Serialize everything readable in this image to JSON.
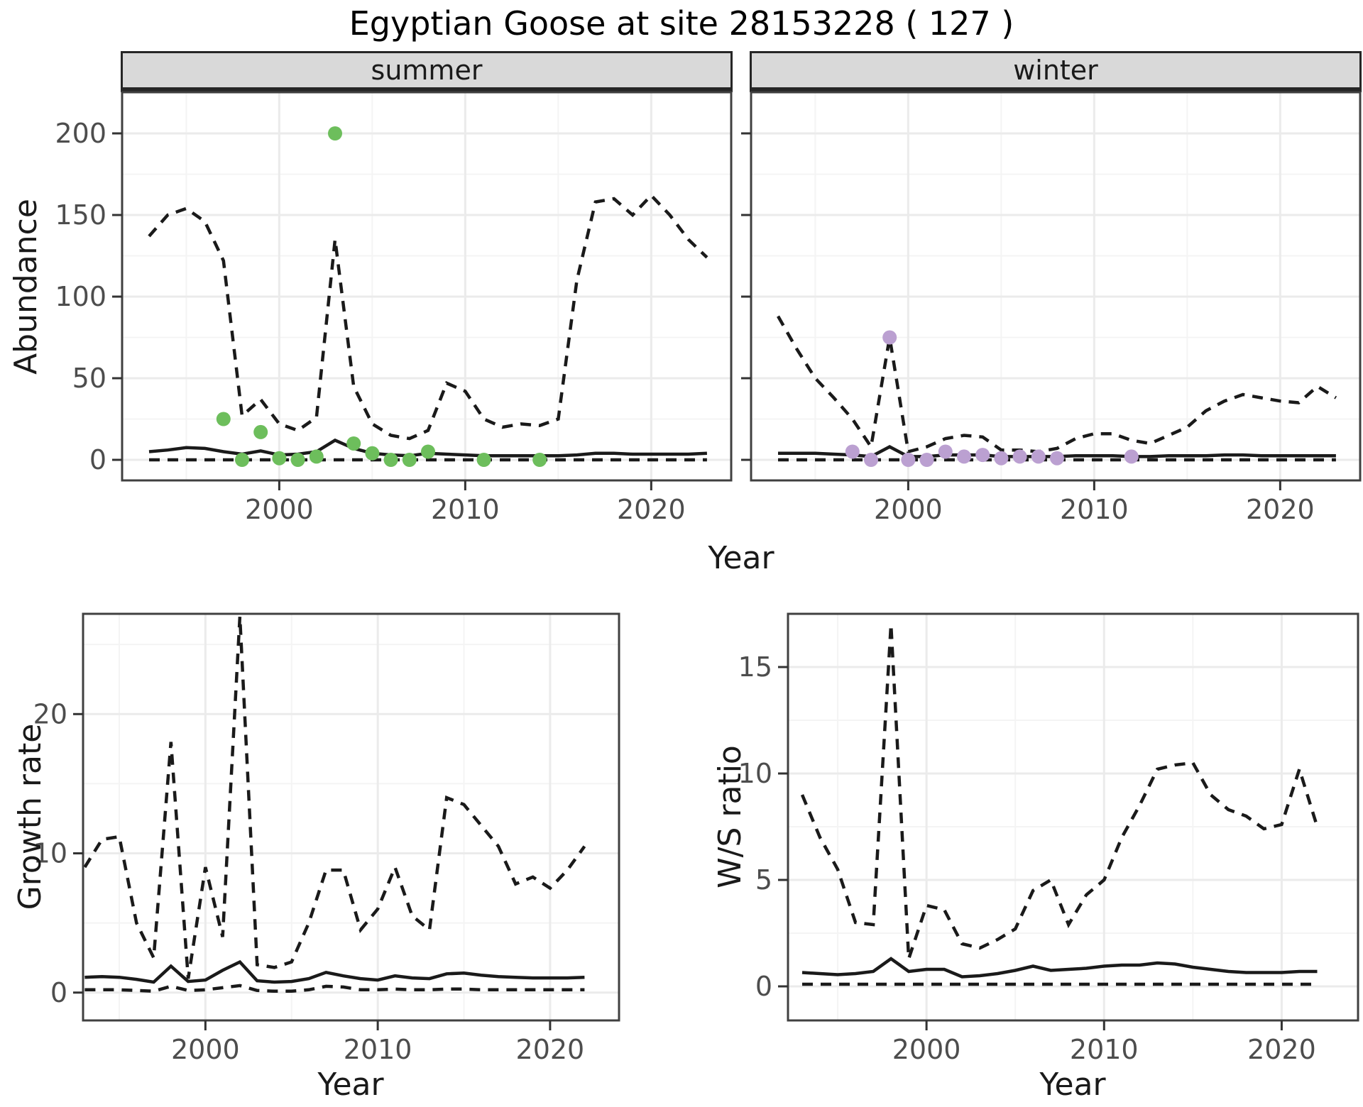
{
  "title": "Egyptian Goose at site 28153228 ( 127 )",
  "facets": [
    {
      "label": "summer"
    },
    {
      "label": "winter"
    }
  ],
  "axes": {
    "abundance_label": "Abundance",
    "year_label_top": "Year",
    "year_label_bottom_left": "Year",
    "year_label_bottom_right": "Year",
    "growth_label": "Growth rate",
    "ws_label": "W/S ratio"
  },
  "colors": {
    "summer_point": "#6DBE5C",
    "winter_point": "#BBA0D1",
    "line": "#1A1A1A",
    "strip_bg": "#D9D9D9",
    "grid_major": "#EBEBEB",
    "grid_minor": "#F4F4F4",
    "tick_text": "#4D4D4D",
    "panel_border": "#404040"
  },
  "chart_data": [
    {
      "id": "abundance-summer",
      "type": "line",
      "facet": "summer",
      "title": "Abundance - summer",
      "xlabel": "Year",
      "ylabel": "Abundance",
      "xlim": [
        1991.55,
        2024.3
      ],
      "ylim": [
        -12.6,
        225.2
      ],
      "x_ticks": [
        2000,
        2010,
        2020
      ],
      "x_minor": [
        1995,
        2005,
        2015
      ],
      "y_ticks": [
        0,
        50,
        100,
        150,
        200
      ],
      "y_minor": [
        25,
        75,
        125,
        175,
        225
      ],
      "grid": true,
      "legend": "none",
      "x": [
        1993,
        1994,
        1995,
        1996,
        1997,
        1998,
        1999,
        2000,
        2001,
        2002,
        2003,
        2004,
        2005,
        2006,
        2007,
        2008,
        2009,
        2010,
        2011,
        2012,
        2013,
        2014,
        2015,
        2016,
        2017,
        2018,
        2019,
        2020,
        2021,
        2022,
        2023
      ],
      "series": [
        {
          "name": "upper-ci",
          "style": "dashed",
          "values": [
            137,
            150,
            154,
            146,
            122,
            27,
            37,
            22,
            18,
            26,
            135,
            45,
            22,
            15,
            13,
            18,
            47,
            42,
            25,
            20,
            22,
            21,
            25,
            110,
            158,
            160,
            150,
            162,
            150,
            135,
            124
          ]
        },
        {
          "name": "median",
          "style": "solid",
          "values": [
            5,
            6,
            7.5,
            7,
            5,
            3.5,
            5.5,
            3,
            3.5,
            5,
            12,
            7,
            4,
            3,
            2.5,
            4,
            3.5,
            3,
            2.5,
            2.5,
            2.5,
            2.5,
            2.5,
            3,
            4,
            4,
            3.5,
            3.5,
            3.5,
            3.5,
            4
          ]
        },
        {
          "name": "lower-ci",
          "style": "dashed",
          "values": [
            0,
            0,
            0,
            0,
            0,
            0,
            0,
            0,
            0,
            0,
            0,
            0,
            0,
            0,
            0,
            0,
            0,
            0,
            0,
            0,
            0,
            0,
            0,
            0,
            0,
            0,
            0,
            0,
            0,
            0,
            0
          ]
        }
      ],
      "points": {
        "name": "observed-counts",
        "color": "#6DBE5C",
        "data": [
          [
            1997,
            25
          ],
          [
            1998,
            0
          ],
          [
            1999,
            17
          ],
          [
            2000,
            1
          ],
          [
            2001,
            0
          ],
          [
            2002,
            2
          ],
          [
            2003,
            200
          ],
          [
            2004,
            10
          ],
          [
            2005,
            4
          ],
          [
            2006,
            0
          ],
          [
            2007,
            0
          ],
          [
            2008,
            5
          ],
          [
            2011,
            0
          ],
          [
            2014,
            0
          ]
        ]
      }
    },
    {
      "id": "abundance-winter",
      "type": "line",
      "facet": "winter",
      "title": "Abundance - winter",
      "xlabel": "Year",
      "ylabel": "Abundance",
      "xlim": [
        1991.55,
        2024.3
      ],
      "ylim": [
        -12.6,
        225.2
      ],
      "x_ticks": [
        2000,
        2010,
        2020
      ],
      "x_minor": [
        1995,
        2005,
        2015
      ],
      "y_ticks": [
        0,
        50,
        100,
        150,
        200
      ],
      "y_minor": [
        25,
        75,
        125,
        175,
        225
      ],
      "grid": true,
      "legend": "none",
      "x": [
        1993,
        1994,
        1995,
        1996,
        1997,
        1998,
        1999,
        2000,
        2001,
        2002,
        2003,
        2004,
        2005,
        2006,
        2007,
        2008,
        2009,
        2010,
        2011,
        2012,
        2013,
        2014,
        2015,
        2016,
        2017,
        2018,
        2019,
        2020,
        2021,
        2022,
        2023
      ],
      "series": [
        {
          "name": "upper-ci",
          "style": "dashed",
          "values": [
            88,
            68,
            50,
            38,
            25,
            8,
            75,
            5,
            8,
            13,
            15,
            14,
            6,
            6,
            5,
            7,
            13,
            16,
            16,
            12,
            10,
            15,
            20,
            30,
            36,
            40,
            38,
            36,
            35,
            45,
            38
          ]
        },
        {
          "name": "median",
          "style": "solid",
          "values": [
            4,
            4,
            4,
            3.5,
            3,
            2,
            8,
            2,
            2,
            3,
            3,
            3,
            2,
            2,
            2,
            2,
            2.5,
            2.5,
            2.5,
            2,
            2,
            2.5,
            2.5,
            2.5,
            3,
            3,
            2.5,
            2.5,
            2.5,
            2.5,
            2.5
          ]
        },
        {
          "name": "lower-ci",
          "style": "dashed",
          "values": [
            0,
            0,
            0,
            0,
            0,
            0,
            0,
            0,
            0,
            0,
            0,
            0,
            0,
            0,
            0,
            0,
            0,
            0,
            0,
            0,
            0,
            0,
            0,
            0,
            0,
            0,
            0,
            0,
            0,
            0,
            0
          ]
        }
      ],
      "points": {
        "name": "observed-counts",
        "color": "#BBA0D1",
        "data": [
          [
            1997,
            5
          ],
          [
            1998,
            0
          ],
          [
            1999,
            75
          ],
          [
            2000,
            0
          ],
          [
            2001,
            0
          ],
          [
            2002,
            5
          ],
          [
            2003,
            2
          ],
          [
            2004,
            3
          ],
          [
            2005,
            1
          ],
          [
            2006,
            2
          ],
          [
            2007,
            2
          ],
          [
            2008,
            1
          ],
          [
            2012,
            2
          ]
        ]
      }
    },
    {
      "id": "growth-rate",
      "type": "line",
      "title": "Growth rate",
      "xlabel": "Year",
      "ylabel": "Growth rate",
      "xlim": [
        1992.9,
        2024.0
      ],
      "ylim": [
        -2.0,
        27.2
      ],
      "x_ticks": [
        2000,
        2010,
        2020
      ],
      "x_minor": [
        1995,
        2005,
        2015
      ],
      "y_ticks": [
        0,
        10,
        20
      ],
      "y_minor": [
        5,
        15,
        25
      ],
      "grid": true,
      "legend": "none",
      "x": [
        1993,
        1994,
        1995,
        1996,
        1997,
        1998,
        1999,
        2000,
        2001,
        2002,
        2003,
        2004,
        2005,
        2006,
        2007,
        2008,
        2009,
        2010,
        2011,
        2012,
        2013,
        2014,
        2015,
        2016,
        2017,
        2018,
        2019,
        2020,
        2021,
        2022
      ],
      "series": [
        {
          "name": "upper-ci",
          "style": "dashed",
          "values": [
            9,
            11,
            11.2,
            5,
            2.5,
            18,
            1,
            9,
            4,
            27,
            2,
            1.8,
            2.2,
            5,
            8.8,
            8.8,
            4.5,
            6,
            9,
            5.5,
            4.5,
            14,
            13.5,
            12,
            10.5,
            7.8,
            8.3,
            7.5,
            8.8,
            10.5
          ]
        },
        {
          "name": "median",
          "style": "solid",
          "values": [
            1.1,
            1.15,
            1.1,
            0.95,
            0.75,
            1.9,
            0.8,
            0.9,
            1.6,
            2.2,
            0.85,
            0.75,
            0.8,
            1.0,
            1.45,
            1.2,
            1.0,
            0.9,
            1.2,
            1.05,
            1.0,
            1.35,
            1.4,
            1.25,
            1.15,
            1.1,
            1.05,
            1.05,
            1.05,
            1.1
          ]
        },
        {
          "name": "lower-ci",
          "style": "dashed",
          "values": [
            0.2,
            0.2,
            0.2,
            0.15,
            0.1,
            0.45,
            0.15,
            0.2,
            0.35,
            0.5,
            0.15,
            0.1,
            0.1,
            0.2,
            0.45,
            0.4,
            0.2,
            0.2,
            0.25,
            0.2,
            0.2,
            0.25,
            0.25,
            0.2,
            0.2,
            0.2,
            0.2,
            0.2,
            0.2,
            0.2
          ]
        }
      ],
      "points": null
    },
    {
      "id": "ws-ratio",
      "type": "line",
      "title": "W/S ratio",
      "xlabel": "Year",
      "ylabel": "W/S ratio",
      "xlim": [
        1992.2,
        2024.3
      ],
      "ylim": [
        -1.6,
        17.5
      ],
      "x_ticks": [
        2000,
        2010,
        2020
      ],
      "x_minor": [
        1995,
        2005,
        2015
      ],
      "y_ticks": [
        0,
        5,
        10,
        15
      ],
      "y_minor": [
        2.5,
        7.5,
        12.5,
        17.5
      ],
      "grid": true,
      "legend": "none",
      "x": [
        1993,
        1994,
        1995,
        1996,
        1997,
        1998,
        1999,
        2000,
        2001,
        2002,
        2003,
        2004,
        2005,
        2006,
        2007,
        2008,
        2009,
        2010,
        2011,
        2012,
        2013,
        2014,
        2015,
        2016,
        2017,
        2018,
        2019,
        2020,
        2021,
        2022
      ],
      "series": [
        {
          "name": "upper-ci",
          "style": "dashed",
          "values": [
            9,
            7,
            5.5,
            3,
            2.9,
            17,
            1.3,
            3.8,
            3.6,
            2.0,
            1.8,
            2.2,
            2.7,
            4.5,
            5.0,
            2.9,
            4.3,
            5.0,
            7.0,
            8.5,
            10.2,
            10.4,
            10.5,
            9.0,
            8.3,
            8.0,
            7.4,
            7.6,
            10.2,
            7.5
          ]
        },
        {
          "name": "median",
          "style": "solid",
          "values": [
            0.65,
            0.6,
            0.55,
            0.6,
            0.7,
            1.3,
            0.7,
            0.8,
            0.8,
            0.45,
            0.5,
            0.6,
            0.75,
            0.95,
            0.75,
            0.8,
            0.85,
            0.95,
            1.0,
            1.0,
            1.1,
            1.05,
            0.9,
            0.8,
            0.7,
            0.65,
            0.65,
            0.65,
            0.7,
            0.7
          ]
        },
        {
          "name": "lower-ci",
          "style": "dashed",
          "values": [
            0.1,
            0.1,
            0.1,
            0.1,
            0.1,
            0.1,
            0.1,
            0.1,
            0.1,
            0.1,
            0.1,
            0.1,
            0.1,
            0.1,
            0.1,
            0.1,
            0.1,
            0.1,
            0.1,
            0.1,
            0.1,
            0.1,
            0.1,
            0.1,
            0.1,
            0.1,
            0.1,
            0.1,
            0.1,
            0.1
          ]
        }
      ],
      "points": null
    }
  ]
}
